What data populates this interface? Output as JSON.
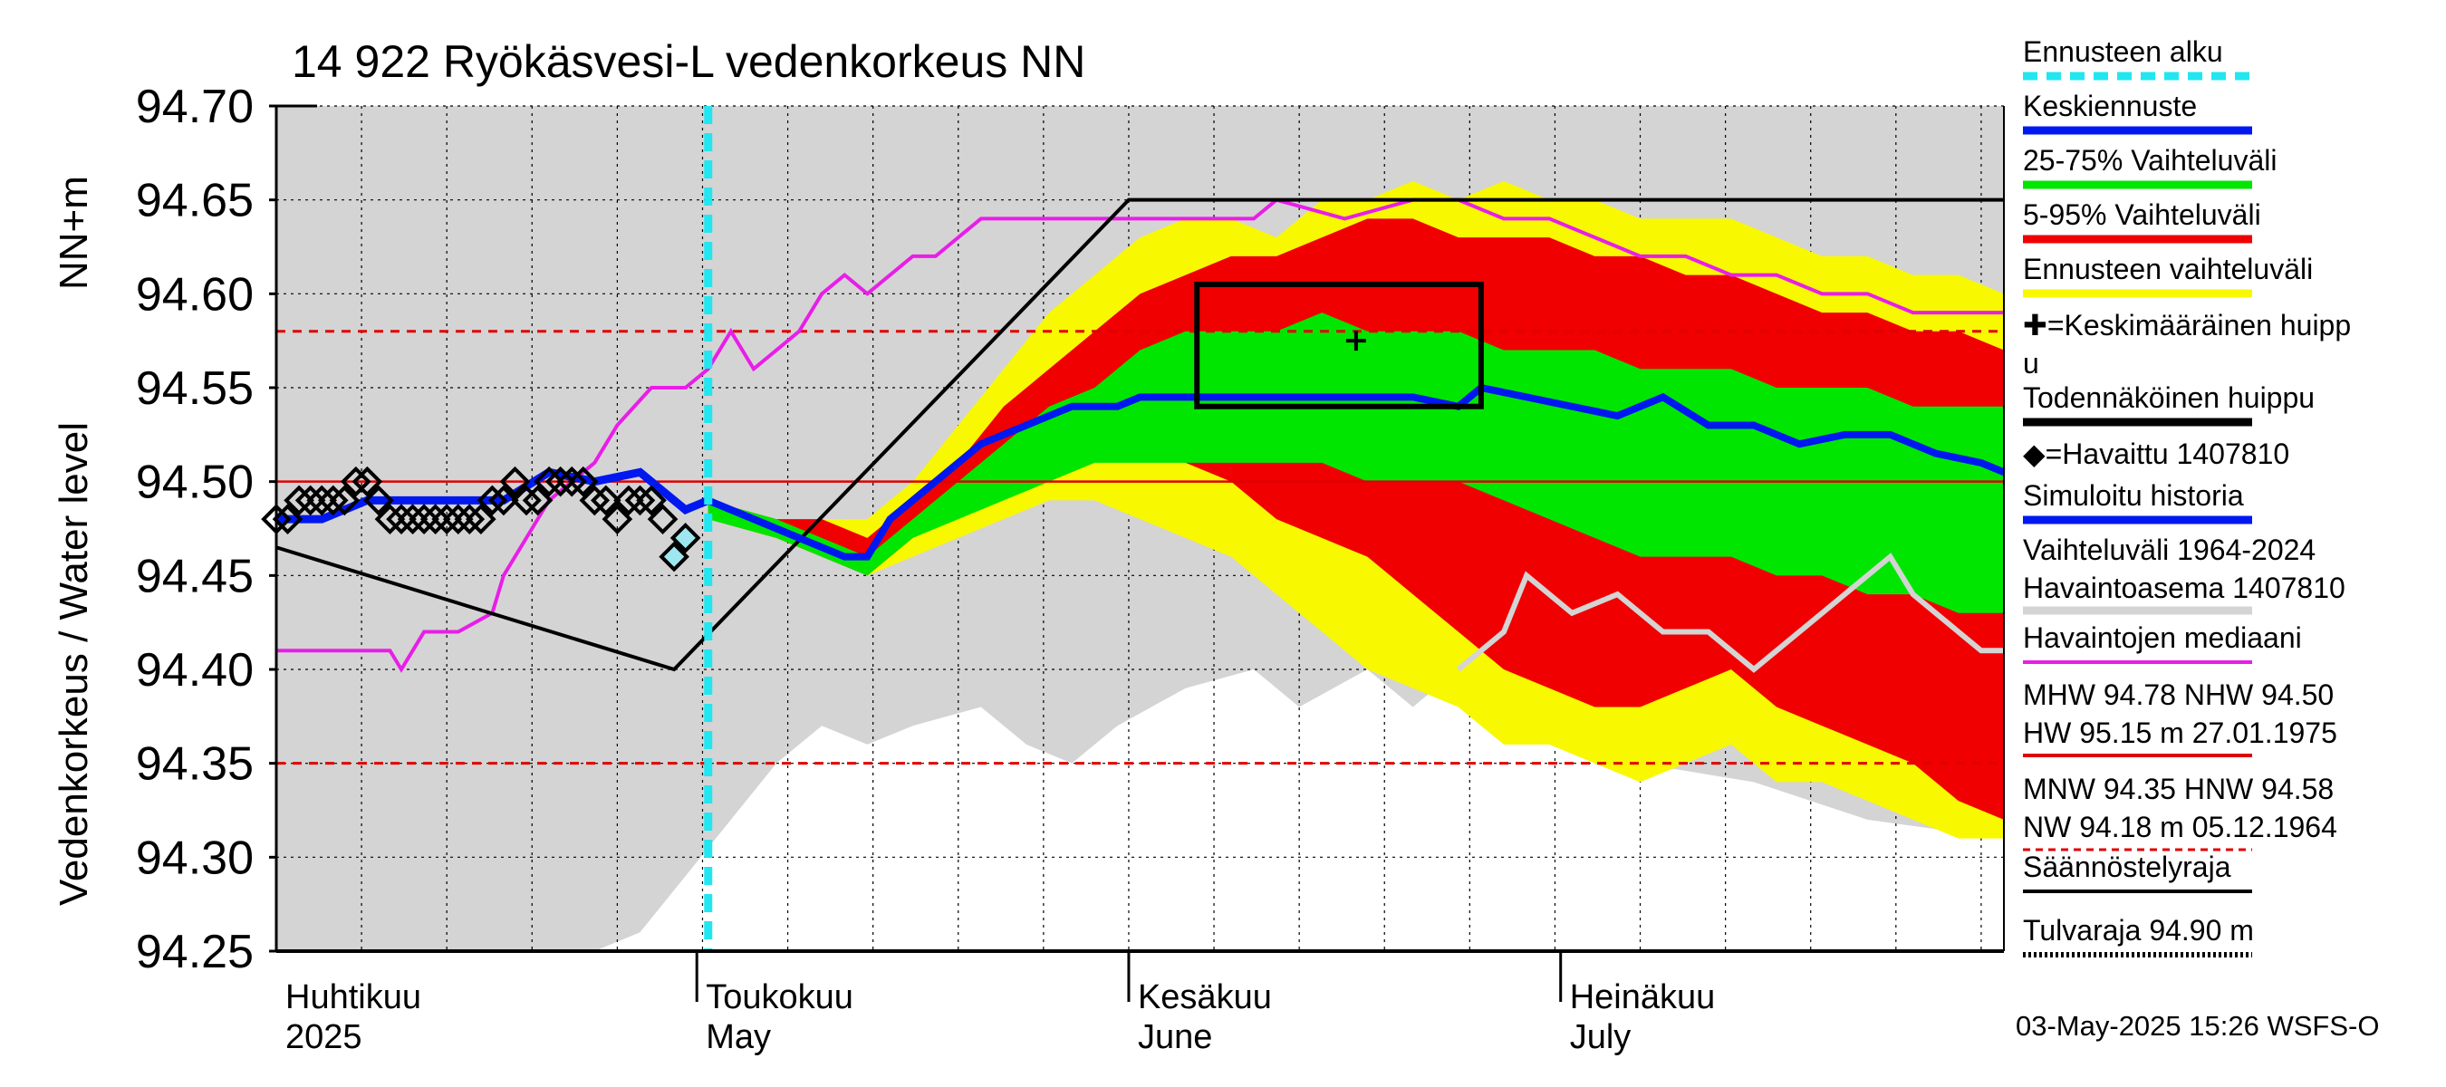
{
  "chart_data": {
    "type": "area",
    "title": "14 922 Ryökäsvesi-L vedenkorkeus NN",
    "ylabel_left": "Vedenkorkeus / Water level",
    "ylabel_unit": "NN+m",
    "ylim": [
      94.25,
      94.7
    ],
    "yticks": [
      "94.70",
      "94.65",
      "94.60",
      "94.55",
      "94.50",
      "94.45",
      "94.40",
      "94.35",
      "94.30",
      "94.25"
    ],
    "x_range_days": [
      0,
      152
    ],
    "month_labels": [
      {
        "fi": "Huhtikuu",
        "en": "2025",
        "day": 0
      },
      {
        "fi": "Toukokuu",
        "en": "May",
        "day": 37
      },
      {
        "fi": "Kesäkuu",
        "en": "June",
        "day": 75
      },
      {
        "fi": "Heinäkuu",
        "en": "July",
        "day": 113
      }
    ],
    "forecast_start_day": 38,
    "reference_lines": {
      "mhw_red_dashed": 94.58,
      "nhw_red_solid": 94.5,
      "mnw_red_dashed": 94.35
    },
    "series": [
      {
        "name": "Vaihteluväli 1964-2024 upper",
        "x": [
          0,
          152
        ],
        "y": [
          94.7,
          94.7
        ]
      },
      {
        "name": "Vaihteluväli 1964-2024 lower",
        "x": [
          28,
          32,
          36,
          40,
          44,
          48,
          52,
          56,
          62,
          66,
          70,
          74,
          80,
          86,
          90,
          96,
          100,
          104,
          110,
          120,
          130,
          140,
          152
        ],
        "y": [
          94.25,
          94.26,
          94.29,
          94.32,
          94.35,
          94.37,
          94.36,
          94.37,
          94.38,
          94.36,
          94.35,
          94.37,
          94.39,
          94.4,
          94.38,
          94.4,
          94.38,
          94.4,
          94.37,
          94.35,
          94.34,
          94.32,
          94.31
        ]
      },
      {
        "name": "Ennusteen vaihteluväli upper",
        "x": [
          38,
          44,
          48,
          52,
          56,
          60,
          64,
          68,
          72,
          76,
          80,
          84,
          88,
          92,
          96,
          100,
          104,
          108,
          112,
          116,
          120,
          124,
          128,
          132,
          136,
          140,
          144,
          148,
          152
        ],
        "y": [
          94.49,
          94.48,
          94.48,
          94.48,
          94.5,
          94.53,
          94.56,
          94.59,
          94.61,
          94.63,
          94.64,
          94.64,
          94.63,
          94.65,
          94.65,
          94.66,
          94.65,
          94.66,
          94.65,
          94.65,
          94.64,
          94.64,
          94.64,
          94.63,
          94.62,
          94.62,
          94.61,
          94.61,
          94.6
        ]
      },
      {
        "name": "Ennusteen vaihteluväli lower",
        "x": [
          38,
          44,
          48,
          52,
          56,
          60,
          64,
          68,
          72,
          76,
          80,
          84,
          88,
          92,
          96,
          100,
          104,
          108,
          112,
          116,
          120,
          124,
          128,
          132,
          136,
          140,
          144,
          148,
          152
        ],
        "y": [
          94.48,
          94.47,
          94.46,
          94.45,
          94.46,
          94.47,
          94.48,
          94.49,
          94.49,
          94.48,
          94.47,
          94.46,
          94.44,
          94.42,
          94.4,
          94.39,
          94.38,
          94.36,
          94.36,
          94.35,
          94.34,
          94.35,
          94.36,
          94.34,
          94.34,
          94.33,
          94.32,
          94.31,
          94.31
        ]
      },
      {
        "name": "5-95% Vaihteluväli upper",
        "x": [
          38,
          44,
          48,
          52,
          56,
          60,
          64,
          68,
          72,
          76,
          80,
          84,
          88,
          92,
          96,
          100,
          104,
          108,
          112,
          116,
          120,
          124,
          128,
          132,
          136,
          140,
          144,
          148,
          152
        ],
        "y": [
          94.49,
          94.48,
          94.48,
          94.47,
          94.49,
          94.51,
          94.54,
          94.56,
          94.58,
          94.6,
          94.61,
          94.62,
          94.62,
          94.63,
          94.64,
          94.64,
          94.63,
          94.63,
          94.63,
          94.62,
          94.62,
          94.61,
          94.61,
          94.6,
          94.59,
          94.59,
          94.58,
          94.58,
          94.57
        ]
      },
      {
        "name": "5-95% Vaihteluväli lower",
        "x": [
          38,
          44,
          48,
          52,
          56,
          60,
          64,
          68,
          72,
          76,
          80,
          84,
          88,
          92,
          96,
          100,
          104,
          108,
          112,
          116,
          120,
          124,
          128,
          132,
          136,
          140,
          144,
          148,
          152
        ],
        "y": [
          94.48,
          94.47,
          94.46,
          94.45,
          94.47,
          94.49,
          94.5,
          94.51,
          94.52,
          94.52,
          94.51,
          94.5,
          94.48,
          94.47,
          94.46,
          94.44,
          94.42,
          94.4,
          94.39,
          94.38,
          94.38,
          94.39,
          94.4,
          94.38,
          94.37,
          94.36,
          94.35,
          94.33,
          94.32
        ]
      },
      {
        "name": "25-75% Vaihteluväli upper",
        "x": [
          38,
          44,
          48,
          52,
          56,
          60,
          64,
          68,
          72,
          76,
          80,
          84,
          88,
          92,
          96,
          100,
          104,
          108,
          112,
          116,
          120,
          124,
          128,
          132,
          136,
          140,
          144,
          148,
          152
        ],
        "y": [
          94.49,
          94.48,
          94.47,
          94.46,
          94.48,
          94.5,
          94.52,
          94.54,
          94.55,
          94.57,
          94.58,
          94.58,
          94.58,
          94.59,
          94.58,
          94.58,
          94.58,
          94.57,
          94.57,
          94.57,
          94.56,
          94.56,
          94.56,
          94.55,
          94.55,
          94.55,
          94.54,
          94.54,
          94.54
        ]
      },
      {
        "name": "25-75% Vaihteluväli lower",
        "x": [
          38,
          44,
          48,
          52,
          56,
          60,
          64,
          68,
          72,
          76,
          80,
          84,
          88,
          92,
          96,
          100,
          104,
          108,
          112,
          116,
          120,
          124,
          128,
          132,
          136,
          140,
          144,
          148,
          152
        ],
        "y": [
          94.48,
          94.47,
          94.46,
          94.45,
          94.47,
          94.48,
          94.49,
          94.5,
          94.51,
          94.51,
          94.51,
          94.51,
          94.51,
          94.51,
          94.5,
          94.5,
          94.5,
          94.49,
          94.48,
          94.47,
          94.46,
          94.46,
          94.46,
          94.45,
          94.45,
          94.44,
          94.44,
          94.43,
          94.43
        ]
      },
      {
        "name": "Keskiennuste",
        "x": [
          38,
          42,
          46,
          50,
          52,
          54,
          56,
          58,
          60,
          62,
          64,
          66,
          68,
          70,
          72,
          74,
          76,
          80,
          84,
          88,
          92,
          96,
          100,
          104,
          106,
          110,
          114,
          118,
          122,
          126,
          130,
          134,
          138,
          142,
          146,
          150,
          152
        ],
        "y": [
          94.49,
          94.48,
          94.47,
          94.46,
          94.46,
          94.48,
          94.49,
          94.5,
          94.51,
          94.52,
          94.525,
          94.53,
          94.535,
          94.54,
          94.54,
          94.54,
          94.545,
          94.545,
          94.545,
          94.545,
          94.545,
          94.545,
          94.545,
          94.54,
          94.55,
          94.545,
          94.54,
          94.535,
          94.545,
          94.53,
          94.53,
          94.52,
          94.525,
          94.525,
          94.515,
          94.51,
          94.505
        ]
      },
      {
        "name": "Simuloitu historia",
        "x": [
          0,
          4,
          8,
          12,
          16,
          20,
          24,
          28,
          32,
          34,
          36,
          38
        ],
        "y": [
          94.48,
          94.48,
          94.49,
          94.49,
          94.49,
          94.49,
          94.505,
          94.5,
          94.505,
          94.495,
          94.485,
          94.49
        ]
      },
      {
        "name": "Havaintojen mediaani",
        "x": [
          0,
          10,
          11,
          13,
          16,
          19,
          20,
          22,
          24,
          26,
          28,
          30,
          33,
          36,
          38,
          40,
          42,
          44,
          46,
          48,
          50,
          52,
          54,
          56,
          58,
          60,
          62,
          64,
          66,
          70,
          76,
          86,
          88,
          94,
          100,
          104,
          108,
          112,
          116,
          120,
          124,
          128,
          132,
          136,
          140,
          144,
          148,
          152
        ],
        "y": [
          94.41,
          94.41,
          94.4,
          94.42,
          94.42,
          94.43,
          94.45,
          94.47,
          94.49,
          94.5,
          94.51,
          94.53,
          94.55,
          94.55,
          94.56,
          94.58,
          94.56,
          94.57,
          94.58,
          94.6,
          94.61,
          94.6,
          94.61,
          94.62,
          94.62,
          94.63,
          94.64,
          94.64,
          94.64,
          94.64,
          94.64,
          94.64,
          94.65,
          94.64,
          94.65,
          94.65,
          94.64,
          94.64,
          94.63,
          94.62,
          94.62,
          94.61,
          94.61,
          94.6,
          94.6,
          94.59,
          94.59,
          94.59
        ]
      },
      {
        "name": "Havaintoasema 1407810 (simuloitu)",
        "x": [
          104,
          108,
          110,
          114,
          118,
          122,
          126,
          130,
          134,
          138,
          142,
          144,
          146,
          150,
          152
        ],
        "y": [
          94.4,
          94.42,
          94.45,
          94.43,
          94.44,
          94.42,
          94.42,
          94.4,
          94.42,
          94.44,
          94.46,
          94.44,
          94.43,
          94.41,
          94.41
        ]
      },
      {
        "name": "Säännöstelyraja",
        "x": [
          0,
          35,
          75,
          152
        ],
        "y": [
          94.465,
          94.4,
          94.65,
          94.65
        ]
      },
      {
        "name": "Havaittu 1407810",
        "x": [
          0,
          1,
          2,
          3,
          4,
          5,
          6,
          7,
          8,
          9,
          10,
          11,
          12,
          13,
          14,
          15,
          16,
          17,
          18,
          19,
          20,
          21,
          22,
          23,
          24,
          25,
          26,
          27,
          28,
          29,
          30,
          31,
          32,
          33,
          34,
          35,
          36
        ],
        "y": [
          94.48,
          94.48,
          94.49,
          94.49,
          94.49,
          94.49,
          94.49,
          94.5,
          94.5,
          94.49,
          94.48,
          94.48,
          94.48,
          94.48,
          94.48,
          94.48,
          94.48,
          94.48,
          94.48,
          94.49,
          94.49,
          94.5,
          94.49,
          94.49,
          94.5,
          94.5,
          94.5,
          94.5,
          94.49,
          94.49,
          94.48,
          94.49,
          94.49,
          94.49,
          94.48,
          94.46,
          94.47
        ]
      }
    ],
    "peak_box": {
      "x0": 81,
      "x1": 106,
      "y0": 94.54,
      "y1": 94.605
    },
    "mean_peak": {
      "x": 95,
      "y": 94.575
    },
    "legend": [
      {
        "label": "Ennusteen alku",
        "color": "#22e6f0",
        "style": "dashed-thick"
      },
      {
        "label": "Keskiennuste",
        "color": "#0018f0",
        "style": "thick"
      },
      {
        "label": "25-75% Vaihteluväli",
        "color": "#00e600",
        "style": "thick"
      },
      {
        "label": "5-95% Vaihteluväli",
        "color": "#f00000",
        "style": "thick"
      },
      {
        "label": "Ennusteen vaihteluväli",
        "color": "#f8f800",
        "style": "thick"
      },
      {
        "label": "✚=Keskimääräinen huipp",
        "label2": "u",
        "color": "",
        "style": "none"
      },
      {
        "label": "Todennäköinen huippu",
        "color": "#000000",
        "style": "thick"
      },
      {
        "label": "◆=Havaittu 1407810",
        "color": "",
        "style": "none"
      },
      {
        "label": "Simuloitu historia",
        "color": "#0018f0",
        "style": "thick"
      },
      {
        "label": "Vaihteluväli 1964-2024",
        "label2": " Havaintoasema 1407810",
        "color": "#d4d4d4",
        "style": "thick"
      },
      {
        "label": "Havaintojen mediaani",
        "color": "#e81ee8",
        "style": "thin"
      },
      {
        "label": "MHW  94.78 NHW  94.50",
        "label2": "HW  95.15 m 27.01.1975",
        "color": "#e00000",
        "style": "thin"
      },
      {
        "label": "MNW  94.35 HNW  94.58",
        "label2": "NW  94.18 m 05.12.1964",
        "color": "#e00000",
        "style": "dashed"
      },
      {
        "label": "Säännöstelyraja",
        "color": "#000000",
        "style": "thin"
      },
      {
        "label": "Tulvaraja 94.90 m",
        "color": "#000000",
        "style": "dotted"
      }
    ],
    "footer": "03-May-2025 15:26 WSFS-O"
  }
}
